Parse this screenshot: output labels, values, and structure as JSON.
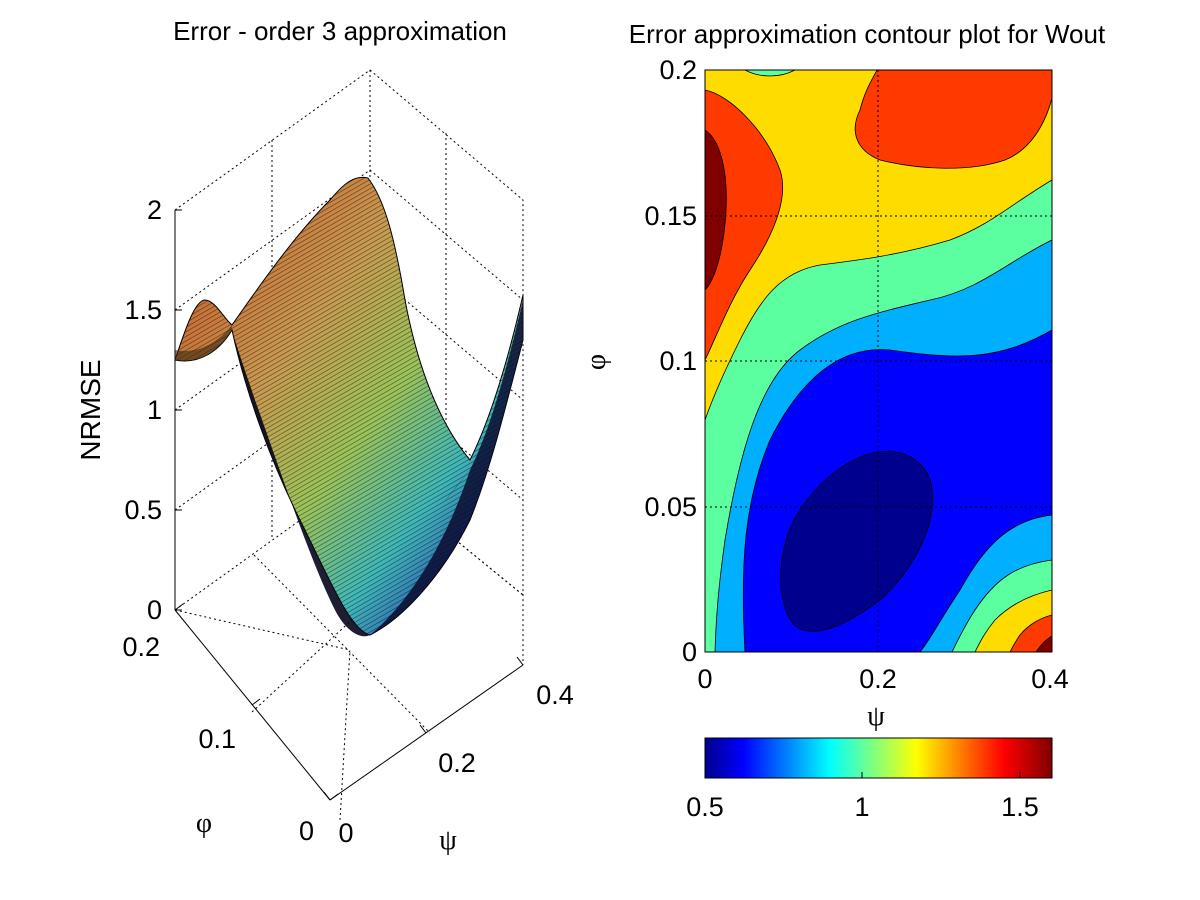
{
  "chart_data": [
    {
      "type": "surface",
      "title": "Error - order 3 approximation",
      "zlabel": "NRMSE",
      "xlabel": "ψ",
      "ylabel": "φ",
      "xlim": [
        0,
        0.4
      ],
      "ylim": [
        0,
        0.2
      ],
      "zlim": [
        0,
        2
      ],
      "x_ticks": [
        "0",
        "0.2",
        "0.4"
      ],
      "y_ticks": [
        "0",
        "0.1",
        "0.2"
      ],
      "z_ticks": [
        "0",
        "0.5",
        "1",
        "1.5",
        "2"
      ],
      "colormap": "jet",
      "grid": true,
      "ridge_peak_nrmse": 2.0,
      "valley_min_nrmse": 0.0
    },
    {
      "type": "contourf",
      "title": "Error approximation contour plot for Wout",
      "xlabel": "ψ",
      "ylabel": "φ",
      "xlim": [
        0,
        0.4
      ],
      "ylim": [
        0,
        0.2
      ],
      "x_ticks": [
        "0",
        "0.2",
        "0.4"
      ],
      "y_ticks": [
        "0",
        "0.05",
        "0.1",
        "0.15",
        "0.2"
      ],
      "levels": [
        0.55,
        0.7,
        0.85,
        1.0,
        1.15,
        1.3,
        1.45,
        1.6
      ],
      "level_colors": [
        "#00008f",
        "#0000ff",
        "#00b0ff",
        "#5cffa0",
        "#ffdc00",
        "#ff3a00",
        "#800000"
      ],
      "minimum_location": {
        "psi": 0.15,
        "phi": 0.03
      },
      "grid": true
    },
    {
      "type": "colorbar",
      "colormap": "jet",
      "range": [
        0.5,
        1.6
      ],
      "ticks": [
        "0.5",
        "1",
        "1.5"
      ],
      "orientation": "horizontal"
    }
  ],
  "colors": {
    "jet": [
      "#00008f",
      "#0000ff",
      "#0080ff",
      "#00ffff",
      "#80ff80",
      "#ffff00",
      "#ff8000",
      "#ff0000",
      "#800000"
    ]
  }
}
